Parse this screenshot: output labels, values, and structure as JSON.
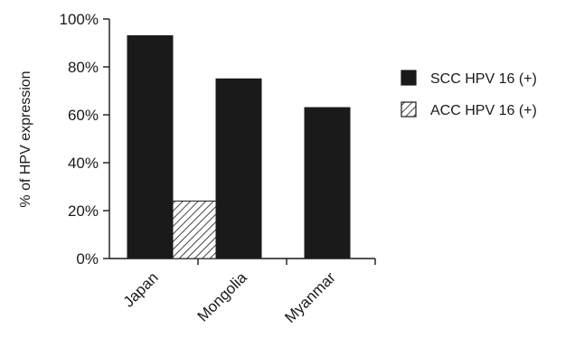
{
  "chart_data": {
    "type": "bar",
    "title": "",
    "xlabel": "",
    "ylabel": "% of HPV expression",
    "categories": [
      "Japan",
      "Mongolia",
      "Myanmar"
    ],
    "series": [
      {
        "name": "SCC HPV 16 (+)",
        "values": [
          93,
          75,
          63
        ],
        "color": "#1a1a1a",
        "fill": "solid"
      },
      {
        "name": "ACC HPV 16 (+)",
        "values": [
          24,
          0,
          0
        ],
        "color": "#1a1a1a",
        "fill": "hatched"
      }
    ],
    "ylim": [
      0,
      100
    ],
    "yticks": [
      0,
      20,
      40,
      60,
      80,
      100
    ],
    "ytick_labels": [
      "0%",
      "20%",
      "40%",
      "60%",
      "80%",
      "100%"
    ],
    "grid": false,
    "legend_position": "right"
  }
}
